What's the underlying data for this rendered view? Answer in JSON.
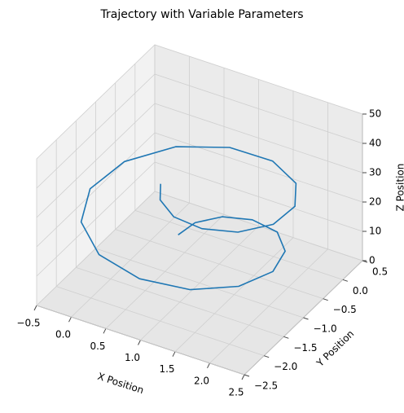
{
  "chart_data": {
    "type": "line3d",
    "title": "Trajectory with Variable Parameters",
    "xlabel": "X Position",
    "ylabel": "Y Position",
    "zlabel": "Z Position",
    "xlim": [
      -0.5,
      2.5
    ],
    "ylim": [
      -2.5,
      0.5
    ],
    "zlim": [
      0,
      50
    ],
    "xticks": [
      {
        "value": -0.5,
        "label": "−0.5"
      },
      {
        "value": 0,
        "label": "0.0"
      },
      0.5,
      {
        "value": 1,
        "label": "1.0"
      },
      1.5,
      {
        "value": 2,
        "label": "2.0"
      },
      2.5
    ],
    "yticks": [
      {
        "value": -2.5,
        "label": "−2.5"
      },
      {
        "value": -2,
        "label": "−2.0"
      },
      {
        "value": -1.5,
        "label": "−1.5"
      },
      {
        "value": -1,
        "label": "−1.0"
      },
      {
        "value": -0.5,
        "label": "−0.5"
      },
      {
        "value": 0,
        "label": "0.0"
      },
      0.5
    ],
    "zticks": [
      0,
      10,
      20,
      30,
      40,
      50
    ],
    "grid": true,
    "series": [
      {
        "color": "#1f77b4",
        "x": [
          0.56,
          0.64,
          0.9,
          1.29,
          1.73,
          2.06,
          2.19,
          2.02,
          1.57,
          0.94,
          0.27,
          -0.25,
          -0.49,
          -0.39,
          0.03,
          0.65,
          1.3,
          1.83,
          2.11,
          2.11,
          1.85,
          1.46,
          1.06,
          0.76,
          0.62
        ],
        "y": [
          -0.77,
          -0.48,
          -0.25,
          -0.17,
          -0.31,
          -0.69,
          -1.23,
          -1.8,
          -2.24,
          -2.42,
          -2.27,
          -1.81,
          -1.16,
          -0.46,
          0.1,
          0.38,
          0.33,
          -0.01,
          -0.53,
          -1.08,
          -1.52,
          -1.75,
          -1.76,
          -1.58,
          -1.32
        ],
        "z": [
          10,
          11.0,
          12.1,
          13.1,
          14.2,
          15.2,
          16.3,
          17.3,
          18.3,
          19.4,
          20.4,
          21.5,
          22.5,
          23.5,
          24.6,
          25.6,
          26.7,
          27.7,
          28.8,
          29.8,
          30.8,
          31.9,
          32.9,
          34.0,
          35
        ]
      }
    ]
  }
}
